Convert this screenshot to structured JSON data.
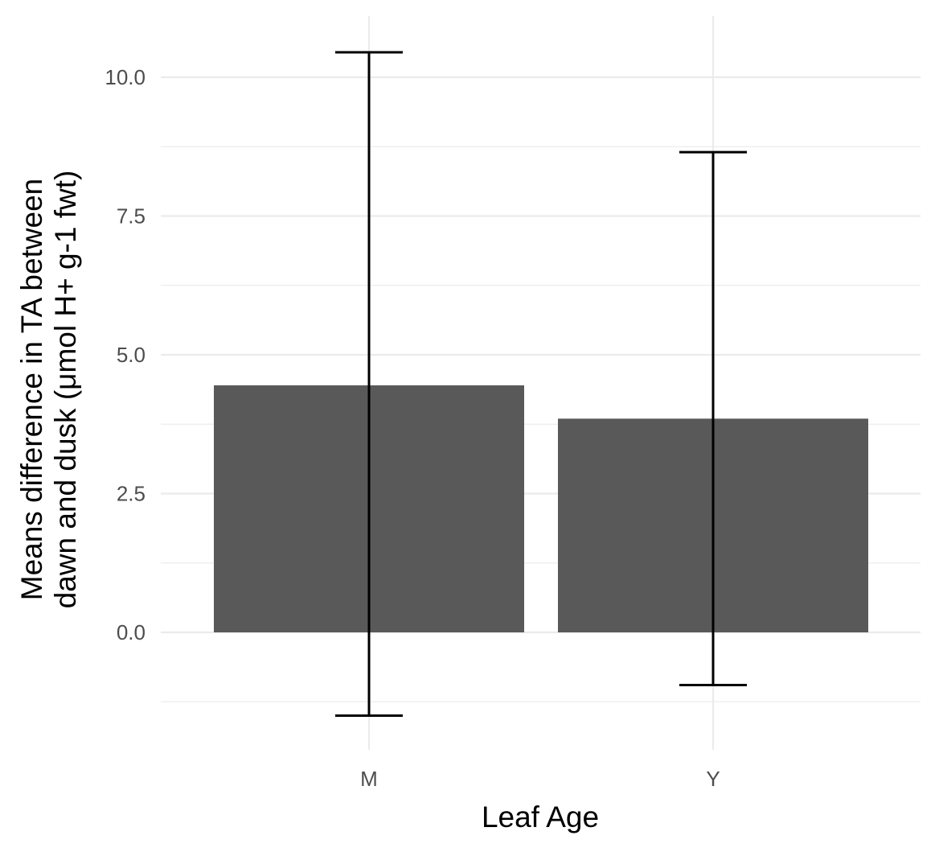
{
  "chart_data": {
    "type": "bar",
    "categories": [
      "M",
      "Y"
    ],
    "values": [
      4.45,
      3.85
    ],
    "error_bars": [
      {
        "category": "M",
        "lower": -1.5,
        "upper": 10.45
      },
      {
        "category": "Y",
        "lower": -0.95,
        "upper": 8.65
      }
    ],
    "xlabel": "Leaf Age",
    "ylabel_lines": [
      "Means difference in TA between",
      "dawn and dusk (μmol H+ g-1 fwt)"
    ],
    "ylim": [
      -2.06,
      11.0
    ],
    "yticks": [
      0.0,
      2.5,
      5.0,
      7.5,
      10.0
    ],
    "ytick_labels": [
      "0.0",
      "2.5",
      "5.0",
      "7.5",
      "10.0"
    ],
    "yminor": [
      -1.25,
      1.25,
      3.75,
      6.25,
      8.75
    ],
    "grid": true,
    "legend": "none",
    "colors": {
      "bar": "#595959",
      "error_bar": "#000000",
      "grid": "#ebebeb",
      "tick_label": "#4d4d4d"
    }
  }
}
